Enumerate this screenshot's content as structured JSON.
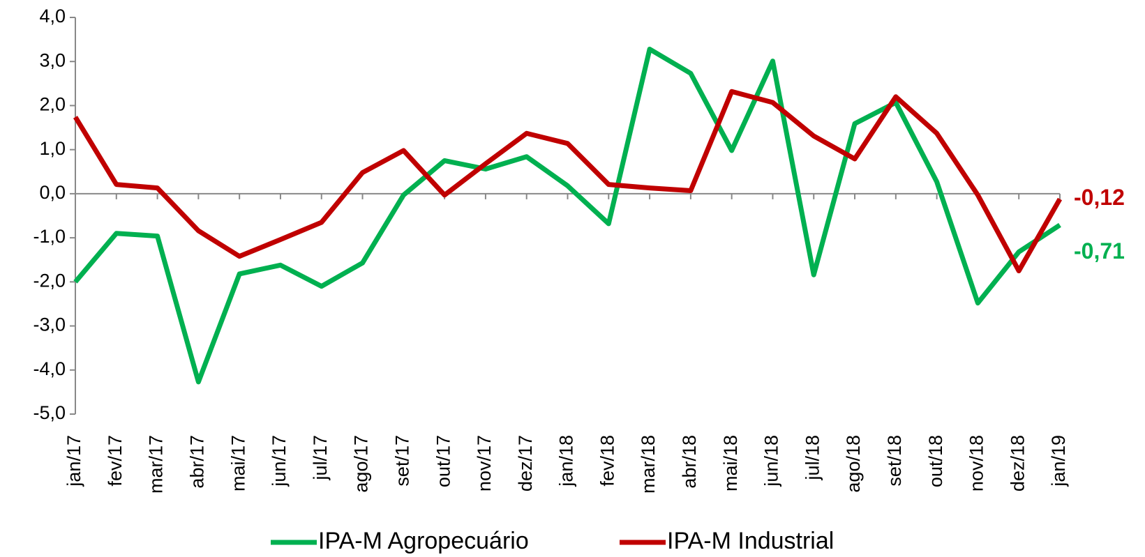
{
  "chart_data": {
    "type": "line",
    "categories": [
      "jan/17",
      "fev/17",
      "mar/17",
      "abr/17",
      "mai/17",
      "jun/17",
      "jul/17",
      "ago/17",
      "set/17",
      "out/17",
      "nov/17",
      "dez/17",
      "jan/18",
      "fev/18",
      "mar/18",
      "abr/18",
      "mai/18",
      "jun/18",
      "jul/18",
      "ago/18",
      "set/18",
      "out/18",
      "nov/18",
      "dez/18",
      "jan/19"
    ],
    "series": [
      {
        "name": "IPA-M Agropecuário",
        "color": "#00b050",
        "values": [
          -2.0,
          -0.9,
          -0.96,
          -4.27,
          -1.82,
          -1.62,
          -2.1,
          -1.57,
          -0.03,
          0.75,
          0.56,
          0.84,
          0.18,
          -0.68,
          3.28,
          2.73,
          0.98,
          3.01,
          -1.84,
          1.59,
          2.07,
          0.27,
          -2.48,
          -1.32,
          -0.71
        ],
        "value_labels": [
          null,
          null,
          null,
          null,
          null,
          null,
          null,
          null,
          null,
          null,
          null,
          null,
          null,
          null,
          null,
          null,
          null,
          null,
          null,
          null,
          null,
          null,
          null,
          null,
          "-0,71"
        ]
      },
      {
        "name": "IPA-M Industrial",
        "color": "#c00000",
        "values": [
          1.74,
          0.21,
          0.13,
          -0.84,
          -1.42,
          -1.04,
          -0.65,
          0.48,
          0.98,
          -0.03,
          0.68,
          1.37,
          1.14,
          0.21,
          0.13,
          0.07,
          2.32,
          2.07,
          1.31,
          0.79,
          2.2,
          1.37,
          -0.03,
          -1.75,
          -0.12
        ],
        "value_labels": [
          null,
          null,
          null,
          null,
          null,
          null,
          null,
          null,
          null,
          null,
          null,
          null,
          null,
          null,
          null,
          null,
          null,
          null,
          null,
          null,
          null,
          null,
          null,
          null,
          "-0,12"
        ]
      }
    ],
    "ylim": [
      -5,
      4
    ],
    "yticks": [
      {
        "value": -5,
        "label": "-5,0"
      },
      {
        "value": -4,
        "label": "-4,0"
      },
      {
        "value": -3,
        "label": "-3,0"
      },
      {
        "value": -2,
        "label": "-2,0"
      },
      {
        "value": -1,
        "label": "-1,0"
      },
      {
        "value": 0,
        "label": "0,0"
      },
      {
        "value": 1,
        "label": "1,0"
      },
      {
        "value": 2,
        "label": "2,0"
      },
      {
        "value": 3,
        "label": "3,0"
      },
      {
        "value": 4,
        "label": "4,0"
      }
    ],
    "legend": "bottom"
  }
}
